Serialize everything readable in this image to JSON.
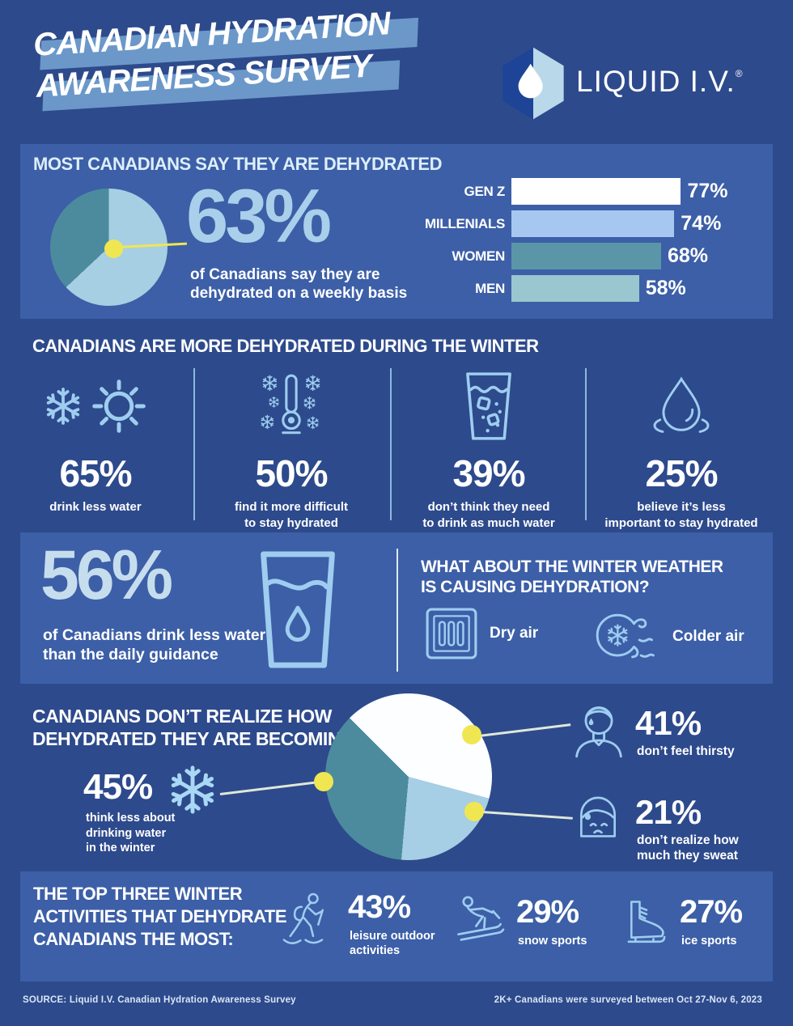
{
  "header": {
    "title_line1": "CANADIAN HYDRATION",
    "title_line2": "AWARENESS SURVEY",
    "brand": "LIQUID I.V.",
    "registered": "®"
  },
  "dehydrated": {
    "heading": "MOST CANADIANS SAY THEY ARE DEHYDRATED",
    "stat": "63%",
    "caption": "of Canadians say they are\ndehydrated on a weekly basis",
    "bars": [
      {
        "label": "GEN Z",
        "value": "77%"
      },
      {
        "label": "MILLENIALS",
        "value": "74%"
      },
      {
        "label": "WOMEN",
        "value": "68%"
      },
      {
        "label": "MEN",
        "value": "58%"
      }
    ]
  },
  "winter": {
    "heading": "CANADIANS ARE MORE DEHYDRATED DURING THE WINTER",
    "stats": [
      {
        "value": "65%",
        "caption": "drink less water",
        "icon": "snowflake-sun"
      },
      {
        "value": "50%",
        "caption": "find it more difficult\nto stay hydrated",
        "icon": "cold-thermometer"
      },
      {
        "value": "39%",
        "caption": "don’t think they need\nto drink as much water",
        "icon": "water-glass"
      },
      {
        "value": "25%",
        "caption": "believe it’s less\nimportant to stay hydrated",
        "icon": "water-drop-ripples"
      }
    ]
  },
  "guidance": {
    "stat": "56%",
    "caption": "of Canadians drink less water\nthan the daily guidance",
    "question": "WHAT ABOUT THE WINTER WEATHER\nIS CAUSING DEHYDRATION?",
    "causes": [
      {
        "label": "Dry air",
        "icon": "air-vent"
      },
      {
        "label": "Colder air",
        "icon": "cold-wind"
      }
    ]
  },
  "realize": {
    "heading": "CANADIANS DON’T REALIZE HOW\nDEHYDRATED THEY ARE BECOMING.",
    "left_stat": {
      "value": "45%",
      "caption": "think less about\ndrinking water\nin the winter",
      "icon": "snowflake"
    },
    "right_stats": [
      {
        "value": "41%",
        "caption": "don’t feel thirsty",
        "icon": "sweating-man-face"
      },
      {
        "value": "21%",
        "caption": "don’t realize how\nmuch they sweat",
        "icon": "sweating-girl-face"
      }
    ]
  },
  "activities": {
    "heading": "THE TOP THREE WINTER\nACTIVITIES THAT DEHYDRATE\nCANADIANS THE MOST:",
    "items": [
      {
        "value": "43%",
        "caption": "leisure outdoor\nactivities",
        "icon": "snowshoeing-person"
      },
      {
        "value": "29%",
        "caption": "snow sports",
        "icon": "skier"
      },
      {
        "value": "27%",
        "caption": "ice sports",
        "icon": "ice-skate"
      }
    ]
  },
  "footer": {
    "source": "SOURCE: Liquid I.V. Canadian Hydration Awareness Survey",
    "note": "2K+ Canadians were surveyed between Oct 27-Nov 6, 2023"
  },
  "colors": {
    "background": "#2d4a8c",
    "panel": "#3c5fa7",
    "ice_blue": "#9ecdf0",
    "pale_blue": "#a9cfea",
    "teal": "#4c8b9e",
    "yellow": "#f0e652"
  },
  "chart_data": [
    {
      "type": "pie",
      "title": "Canadians dehydrated on a weekly basis",
      "labels": [
        "dehydrated weekly",
        "other"
      ],
      "values": [
        63,
        37
      ],
      "colors": [
        "#a6cfe4",
        "#4c8b9e"
      ],
      "render_segments": [
        {
          "deg": 226.8,
          "color": "#a6cfe4"
        },
        {
          "deg": 133.2,
          "color": "#4c8b9e"
        }
      ]
    },
    {
      "type": "bar",
      "title": "Most Canadians say they are dehydrated",
      "categories": [
        "GEN Z",
        "MILLENIALS",
        "WOMEN",
        "MEN"
      ],
      "values": [
        77,
        74,
        68,
        58
      ],
      "unit": "%",
      "colors": [
        "#ffffff",
        "#a6c8f0",
        "#5b96a8",
        "#9ac6cf"
      ],
      "legend": false,
      "orientation": "horizontal"
    },
    {
      "type": "pie",
      "title": "Canadians don’t realize how dehydrated they are becoming",
      "slices": [
        {
          "label": "don’t feel thirsty",
          "value": 41,
          "color": "#fcfeff"
        },
        {
          "label": "don’t realize how much they sweat",
          "value": 21,
          "color": "#a6cee4"
        },
        {
          "label": "think less about drinking water in the winter",
          "value": 45,
          "color": "#4c8b9e"
        }
      ],
      "render_segments": [
        {
          "deg": 105,
          "color": "#fcfeff"
        },
        {
          "deg": 80,
          "color": "#a6cee4"
        },
        {
          "deg": 130,
          "color": "#4c8b9e"
        },
        {
          "deg": 45,
          "color": "#fcfeff"
        }
      ]
    },
    {
      "type": "bar",
      "title": "Canadians are more dehydrated during the winter",
      "categories": [
        "drink less water",
        "find it more difficult to stay hydrated",
        "don’t think they need to drink as much water",
        "believe it’s less important to stay hydrated"
      ],
      "values": [
        65,
        50,
        39,
        25
      ],
      "unit": "%"
    },
    {
      "type": "bar",
      "title": "Top three winter activities that dehydrate Canadians the most",
      "categories": [
        "leisure outdoor activities",
        "snow sports",
        "ice sports"
      ],
      "values": [
        43,
        29,
        27
      ],
      "unit": "%"
    }
  ]
}
